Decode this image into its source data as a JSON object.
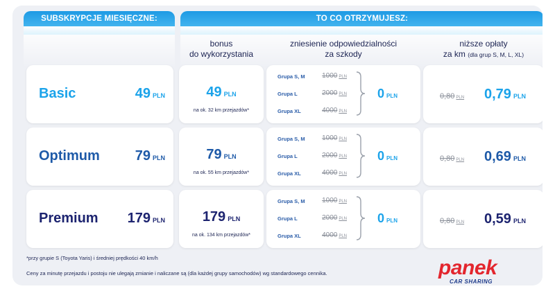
{
  "header": {
    "left": "SUBSKRYPCJE MIESIĘCZNE:",
    "right": "TO CO OTRZYMUJESZ:"
  },
  "columns": {
    "bonus": [
      "bonus",
      "do wykorzystania"
    ],
    "liability": [
      "zniesienie odpowiedzialności",
      "za szkody"
    ],
    "fees": [
      "niższe opłaty",
      "za km",
      "(dla grup S, M, L, XL)"
    ]
  },
  "currency": "PLN",
  "plans": [
    {
      "name": "Basic",
      "price": "49",
      "bonus": "49",
      "bonus_note": "na ok. 32 km przejazdów*",
      "groups": [
        {
          "label": "Grupa S, M",
          "old": "1000"
        },
        {
          "label": "Grupa L",
          "old": "2000"
        },
        {
          "label": "Grupa XL",
          "old": "4000"
        }
      ],
      "liability_new": "0",
      "fee_old": "0,80",
      "fee_new": "0,79"
    },
    {
      "name": "Optimum",
      "price": "79",
      "bonus": "79",
      "bonus_note": "na ok. 55 km przejazdów*",
      "groups": [
        {
          "label": "Grupa S, M",
          "old": "1000"
        },
        {
          "label": "Grupa L",
          "old": "2000"
        },
        {
          "label": "Grupa XL",
          "old": "4000"
        }
      ],
      "liability_new": "0",
      "fee_old": "0,80",
      "fee_new": "0,69"
    },
    {
      "name": "Premium",
      "price": "179",
      "bonus": "179",
      "bonus_note": "na ok. 134 km przejazdów*",
      "groups": [
        {
          "label": "Grupa S, M",
          "old": "1000"
        },
        {
          "label": "Grupa L",
          "old": "2000"
        },
        {
          "label": "Grupa XL",
          "old": "4000"
        }
      ],
      "liability_new": "0",
      "fee_old": "0,80",
      "fee_new": "0,59"
    }
  ],
  "footnotes": {
    "line1": "*przy grupie S (Toyota Yaris) i średniej prędkości 40 km/h",
    "line2": "Ceny za minutę przejazdu i postoju nie ulegają zmianie i naliczane są (dla każdej grupy samochodów) wg standardowego cennika."
  },
  "logo": {
    "word": "panek",
    "sub": "CAR SHARING"
  },
  "colors": {
    "basic": "#1ba3ea",
    "optimum": "#1e5aa8",
    "premium": "#1d2470",
    "header": "#33aef0"
  }
}
